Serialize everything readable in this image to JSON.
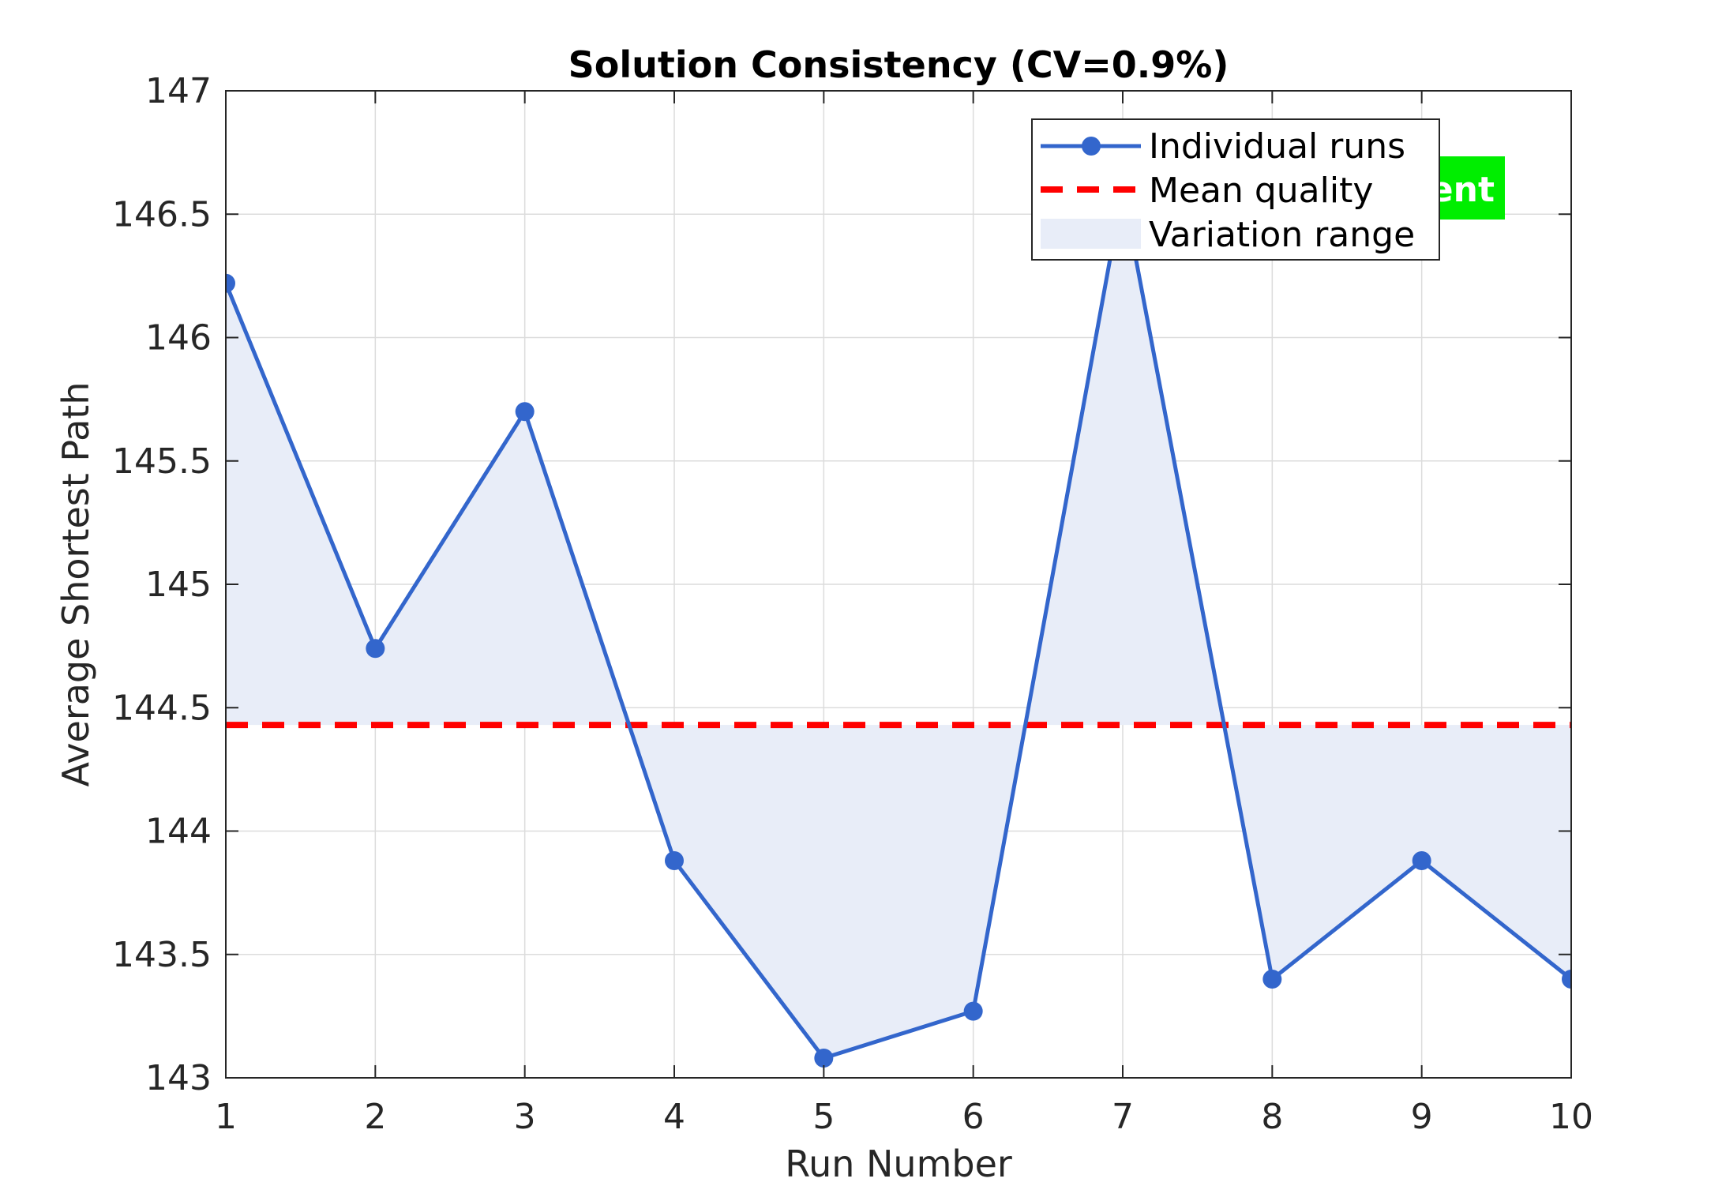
{
  "chart_data": {
    "type": "line",
    "title": "Solution Consistency (CV=0.9%)",
    "xlabel": "Run Number",
    "ylabel": "Average Shortest Path",
    "xlim": [
      1,
      10
    ],
    "ylim": [
      143,
      147
    ],
    "xticks": [
      1,
      2,
      3,
      4,
      5,
      6,
      7,
      8,
      9,
      10
    ],
    "yticks": [
      143,
      143.5,
      144,
      144.5,
      145,
      145.5,
      146,
      146.5,
      147
    ],
    "ytick_labels": [
      "143",
      "143.5",
      "144",
      "144.5",
      "145",
      "145.5",
      "146",
      "146.5",
      "147"
    ],
    "grid": true,
    "legend_position": "top-right",
    "x": [
      1,
      2,
      3,
      4,
      5,
      6,
      7,
      8,
      9,
      10
    ],
    "series": [
      {
        "name": "Individual runs",
        "values": [
          146.22,
          144.74,
          145.7,
          143.88,
          143.08,
          143.27,
          146.6,
          143.4,
          143.88,
          143.4
        ],
        "color": "#3366cc"
      }
    ],
    "mean": {
      "name": "Mean quality",
      "value": 144.43,
      "color": "#ff0000"
    },
    "band": {
      "name": "Variation range",
      "color": "#e8edf8"
    },
    "badge": {
      "text": "ent",
      "color": "#00ee00"
    }
  }
}
